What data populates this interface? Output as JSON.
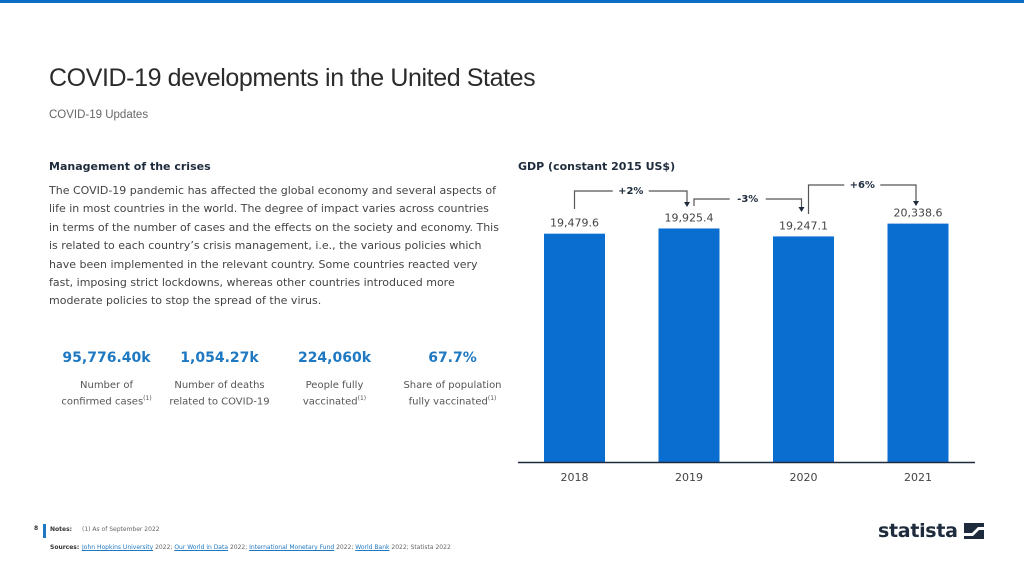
{
  "header": {
    "title": "COVID-19 developments in the United States",
    "subtitle": "COVID-19 Updates"
  },
  "left": {
    "section_title": "Management of the crises",
    "body": "The COVID-19 pandemic has affected the global economy and several aspects of life in most countries in the world. The degree of impact varies across countries in terms of the number of cases and the effects on the society and economy. This is related to each country’s crisis management, i.e., the various policies which have been implemented in the relevant country. Some countries reacted very fast, imposing strict lockdowns, whereas other countries introduced more moderate policies to stop the spread of the virus.",
    "kpis": [
      {
        "value": "95,776.40k",
        "label_line1": "Number of",
        "label_line2": "confirmed cases",
        "footnote": "(1)"
      },
      {
        "value": "1,054.27k",
        "label_line1": "Number of deaths",
        "label_line2": "related to COVID-19",
        "footnote": ""
      },
      {
        "value": "224,060k",
        "label_line1": "People fully",
        "label_line2": "vaccinated",
        "footnote": "(1)"
      },
      {
        "value": "67.7%",
        "label_line1": "Share of population",
        "label_line2": "fully vaccinated",
        "footnote": "(1)"
      }
    ]
  },
  "chart_data": {
    "type": "bar",
    "title": "GDP (constant 2015 US$)",
    "categories": [
      "2018",
      "2019",
      "2020",
      "2021"
    ],
    "values": [
      19479.6,
      19925.4,
      19247.1,
      20338.6
    ],
    "value_labels": [
      "19,479.6",
      "19,925.4",
      "19,247.1",
      "20,338.6"
    ],
    "changes": [
      {
        "from": "2018",
        "to": "2019",
        "label": "+2%"
      },
      {
        "from": "2019",
        "to": "2020",
        "label": "-3%"
      },
      {
        "from": "2020",
        "to": "2021",
        "label": "+6%"
      }
    ],
    "xlabel": "",
    "ylabel": "",
    "ylim": [
      0,
      21500
    ],
    "grid": false,
    "legend": "none",
    "bar_color": "#0a6ed1"
  },
  "footer": {
    "page_number": "8",
    "notes_label": "Notes:",
    "notes_text": "(1) As of September 2022",
    "sources_label": "Sources:",
    "sources": [
      {
        "text": "John Hopkins University",
        "link": true
      },
      {
        "text": " 2022; ",
        "link": false
      },
      {
        "text": "Our World in Data",
        "link": true
      },
      {
        "text": " 2022; ",
        "link": false
      },
      {
        "text": "International Monetary Fund",
        "link": true
      },
      {
        "text": " 2022; ",
        "link": false
      },
      {
        "text": "World Bank",
        "link": true
      },
      {
        "text": " 2022; Statista 2022",
        "link": false
      }
    ],
    "logo_text": "statista"
  }
}
